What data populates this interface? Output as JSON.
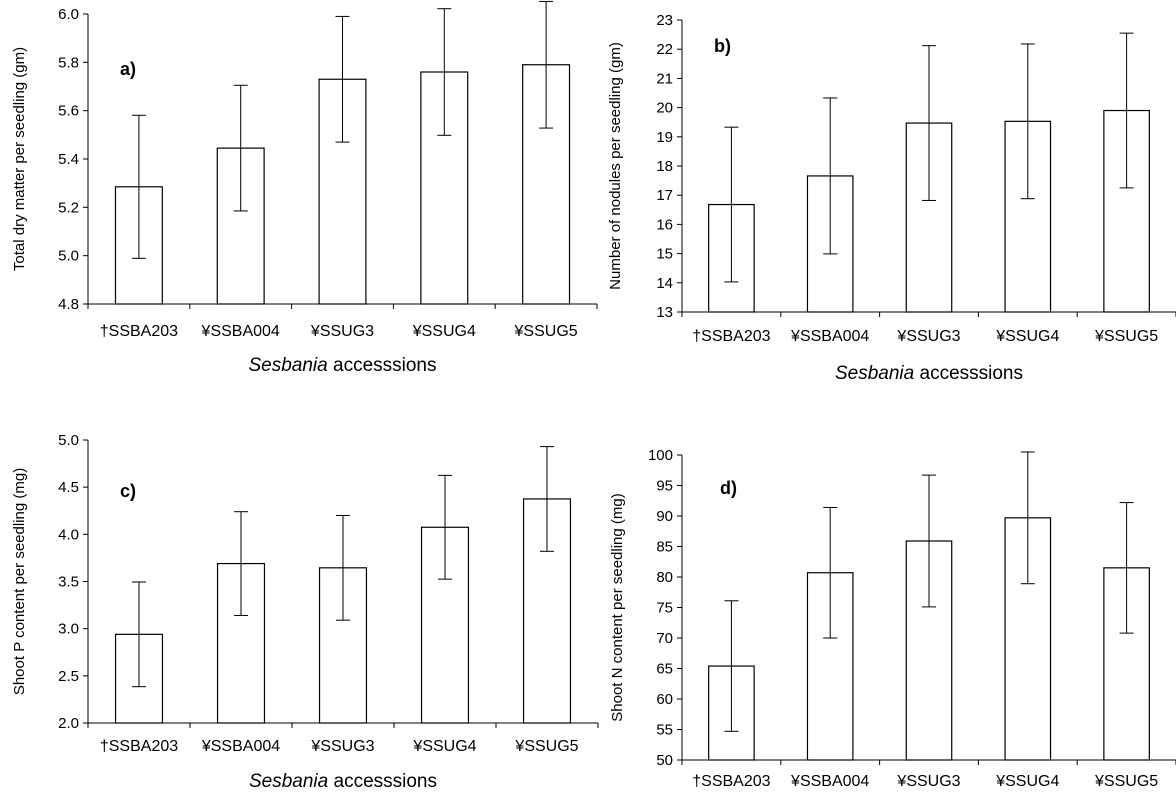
{
  "chart_data": [
    {
      "type": "bar",
      "panel_label": "a)",
      "categories": [
        "†SSBA203",
        "¥SSBA004",
        "¥SSUG3",
        "¥SSUG4",
        "¥SSUG5"
      ],
      "values": [
        5.285,
        5.445,
        5.73,
        5.76,
        5.79
      ],
      "error": [
        0.296,
        0.26,
        0.26,
        0.262,
        0.262
      ],
      "ylabel": "Total dry matter per seedling (gm)",
      "xlabel_italic": "Sesbania",
      "xlabel_rest": " accesssions",
      "ylim": [
        4.8,
        6.0
      ],
      "yticks": [
        "4.8",
        "5.0",
        "5.2",
        "5.4",
        "5.6",
        "5.8",
        "6.0"
      ],
      "grid": false
    },
    {
      "type": "bar",
      "panel_label": "b)",
      "categories": [
        "†SSBA203",
        "¥SSBA004",
        "¥SSUG3",
        "¥SSUG4",
        "¥SSUG5"
      ],
      "values": [
        16.68,
        17.66,
        19.47,
        19.53,
        19.9
      ],
      "error": [
        2.65,
        2.67,
        2.65,
        2.65,
        2.65
      ],
      "ylabel": "Number of nodules per seedling (gm)",
      "xlabel_italic": "Sesbania",
      "xlabel_rest": " accesssions",
      "ylim": [
        13,
        23
      ],
      "yticks": [
        "13",
        "14",
        "15",
        "16",
        "17",
        "18",
        "19",
        "20",
        "21",
        "22",
        "23"
      ],
      "grid": false
    },
    {
      "type": "bar",
      "panel_label": "c)",
      "categories": [
        "†SSBA203",
        "¥SSBA004",
        "¥SSUG3",
        "¥SSUG4",
        "¥SSUG5"
      ],
      "values": [
        2.94,
        3.69,
        3.645,
        4.075,
        4.375
      ],
      "error": [
        0.555,
        0.55,
        0.555,
        0.55,
        0.555
      ],
      "ylabel": "Shoot P content per seedling (mg)",
      "xlabel_italic": "Sesbania",
      "xlabel_rest": " accesssions",
      "ylim": [
        2.0,
        5.0
      ],
      "yticks": [
        "2.0",
        "2.5",
        "3.0",
        "3.5",
        "4.0",
        "4.5",
        "5.0"
      ],
      "grid": false
    },
    {
      "type": "bar",
      "panel_label": "d)",
      "categories": [
        "†SSBA203",
        "¥SSBA004",
        "¥SSUG3",
        "¥SSUG4",
        "¥SSUG5"
      ],
      "values": [
        65.4,
        80.7,
        85.9,
        89.7,
        81.5
      ],
      "error": [
        10.7,
        10.7,
        10.8,
        10.8,
        10.7
      ],
      "ylabel": "Shoot N content per seedling (mg)",
      "xlabel_italic": "Sesbania",
      "xlabel_rest": " accesssions",
      "ylim": [
        50,
        100
      ],
      "yticks": [
        "50",
        "55",
        "60",
        "65",
        "70",
        "75",
        "80",
        "85",
        "90",
        "95",
        "100"
      ],
      "grid": false
    }
  ]
}
